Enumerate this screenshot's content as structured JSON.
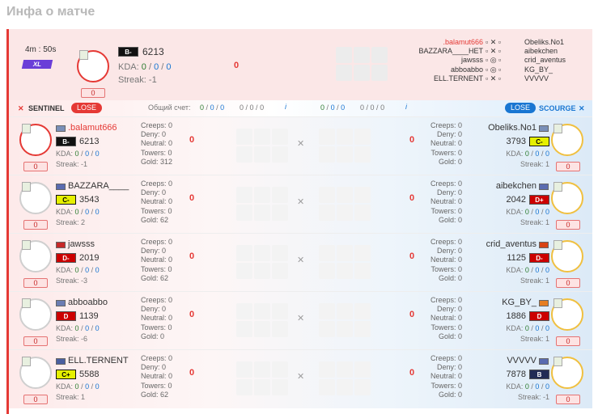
{
  "page_title": "Инфа о матче",
  "summary": {
    "timer": "4m : 50s",
    "badge": "XL",
    "player": {
      "rank": "B-",
      "rating": "6213",
      "kda_label": "KDA:",
      "k": "0",
      "d": "0",
      "a": "0",
      "streak": "Streak: -1",
      "box": "0",
      "score": "0"
    },
    "left_names": [
      ".balamut666",
      "BAZZARA____HET",
      "jawsss",
      "abboabbo",
      "ELL.TERNENT"
    ],
    "right_names": [
      "Obeliks.No1",
      "aibekchen",
      "crid_aventus",
      "KG_BY_",
      "VVVVV"
    ]
  },
  "bar": {
    "left_team": "SENTINEL",
    "left_result": "LOSE",
    "total_label": "Общий счет:",
    "score_a": [
      "0",
      "0",
      "0"
    ],
    "score_b": [
      "0",
      "0",
      "0"
    ],
    "score_c": [
      "0",
      "0",
      "0"
    ],
    "score_d": [
      "0",
      "0",
      "0"
    ],
    "right_result": "LOSE",
    "right_team": "SCOURGE",
    "info": "i"
  },
  "rows": [
    {
      "left": {
        "name": ".balamut666",
        "rank": "B-",
        "rating": "6213",
        "k": "0",
        "d": "0",
        "a": "0",
        "streak": "Streak: -1",
        "box": "0",
        "creeps": "Creeps: 0",
        "deny": "Deny: 0",
        "neutral": "Neutral: 0",
        "towers": "Towers: 0",
        "gold": "Gold: 312",
        "score": "0"
      },
      "right": {
        "name": "Obeliks.No1",
        "rank": "C-",
        "rating": "3793",
        "k": "0",
        "d": "0",
        "a": "0",
        "streak": "Streak: 1",
        "box": "0",
        "creeps": "Creeps: 0",
        "deny": "Deny: 0",
        "neutral": "Neutral: 0",
        "towers": "Towers: 0",
        "gold": "Gold: 0",
        "score": "0"
      }
    },
    {
      "left": {
        "name": "BAZZARA____",
        "rank": "C-",
        "rating": "3543",
        "k": "0",
        "d": "0",
        "a": "0",
        "streak": "Streak: 2",
        "box": "0",
        "creeps": "Creeps: 0",
        "deny": "Deny: 0",
        "neutral": "Neutral: 0",
        "towers": "Towers: 0",
        "gold": "Gold: 62",
        "score": "0"
      },
      "right": {
        "name": "aibekchen",
        "rank": "D+",
        "rating": "2042",
        "k": "0",
        "d": "0",
        "a": "0",
        "streak": "Streak: 1",
        "box": "0",
        "creeps": "Creeps: 0",
        "deny": "Deny: 0",
        "neutral": "Neutral: 0",
        "towers": "Towers: 0",
        "gold": "Gold: 0",
        "score": "0"
      }
    },
    {
      "left": {
        "name": "jawsss",
        "rank": "D-",
        "rating": "2019",
        "k": "0",
        "d": "0",
        "a": "0",
        "streak": "Streak: -3",
        "box": "0",
        "creeps": "Creeps: 0",
        "deny": "Deny: 0",
        "neutral": "Neutral: 0",
        "towers": "Towers: 0",
        "gold": "Gold: 62",
        "score": "0"
      },
      "right": {
        "name": "crid_aventus",
        "rank": "D-",
        "rating": "1125",
        "k": "0",
        "d": "0",
        "a": "0",
        "streak": "Streak: 1",
        "box": "0",
        "creeps": "Creeps: 0",
        "deny": "Deny: 0",
        "neutral": "Neutral: 0",
        "towers": "Towers: 0",
        "gold": "Gold: 0",
        "score": "0"
      }
    },
    {
      "left": {
        "name": "abboabbo",
        "rank": "D",
        "rating": "1139",
        "k": "0",
        "d": "0",
        "a": "0",
        "streak": "Streak: -6",
        "box": "0",
        "creeps": "Creeps: 0",
        "deny": "Deny: 0",
        "neutral": "Neutral: 0",
        "towers": "Towers: 0",
        "gold": "Gold: 0",
        "score": "0"
      },
      "right": {
        "name": "KG_BY_",
        "rank": "D",
        "rating": "1886",
        "k": "0",
        "d": "0",
        "a": "0",
        "streak": "Streak: 1",
        "box": "0",
        "creeps": "Creeps: 0",
        "deny": "Deny: 0",
        "neutral": "Neutral: 0",
        "towers": "Towers: 0",
        "gold": "Gold: 0",
        "score": "0"
      }
    },
    {
      "left": {
        "name": "ELL.TERNENT",
        "rank": "C+",
        "rating": "5588",
        "k": "0",
        "d": "0",
        "a": "0",
        "streak": "Streak: 1",
        "box": "0",
        "creeps": "Creeps: 0",
        "deny": "Deny: 0",
        "neutral": "Neutral: 0",
        "towers": "Towers: 0",
        "gold": "Gold: 62",
        "score": "0"
      },
      "right": {
        "name": "VVVVV",
        "rank": "B",
        "rating": "7878",
        "k": "0",
        "d": "0",
        "a": "0",
        "streak": "Streak: -1",
        "box": "0",
        "creeps": "Creeps: 0",
        "deny": "Deny: 0",
        "neutral": "Neutral: 0",
        "towers": "Towers: 0",
        "gold": "Gold: 0",
        "score": "0"
      }
    }
  ],
  "kda_label": "KDA:",
  "colors": {
    "accent_red": "#e53935",
    "accent_blue": "#1976d2",
    "kda_green": "#2e7d32"
  }
}
